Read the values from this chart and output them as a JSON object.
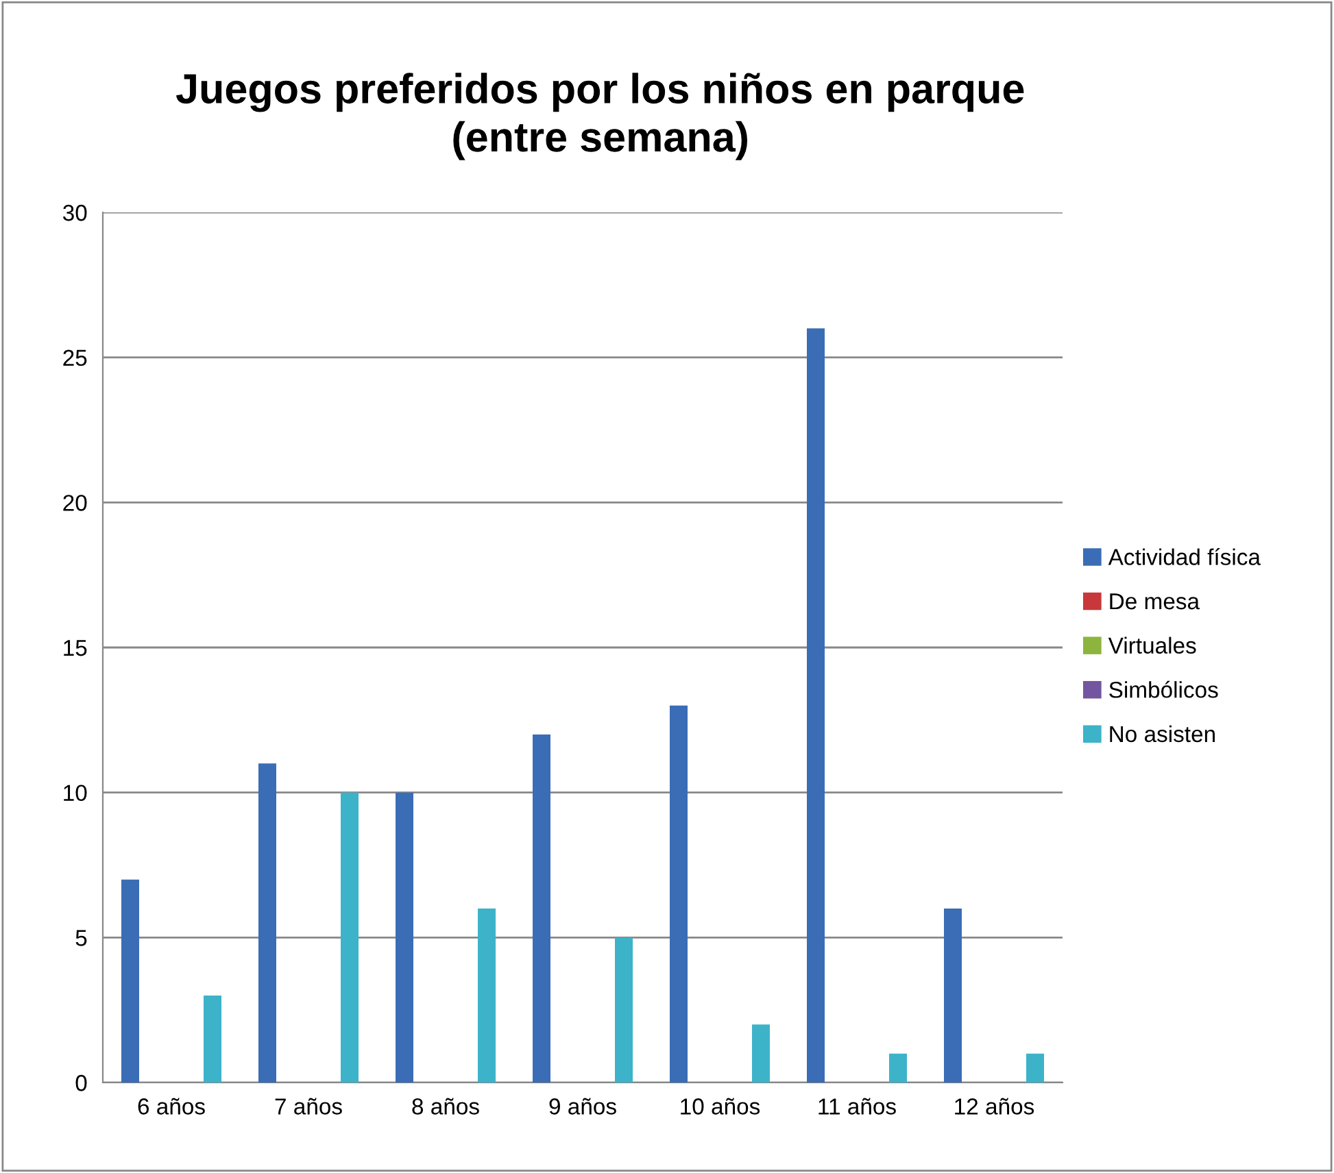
{
  "chart_data": {
    "type": "bar",
    "title": "Juegos preferidos por los niños en parque\n(entre semana)",
    "categories": [
      "6 años",
      "7 años",
      "8 años",
      "9 años",
      "10 años",
      "11 años",
      "12 años"
    ],
    "series": [
      {
        "name": "Actividad física",
        "color": "#3a6db5",
        "values": [
          7,
          11,
          10,
          12,
          13,
          26,
          6
        ]
      },
      {
        "name": "De mesa",
        "color": "#c8383a",
        "values": [
          0,
          0,
          0,
          0,
          0,
          0,
          0
        ]
      },
      {
        "name": "Virtuales",
        "color": "#8db43e",
        "values": [
          0,
          0,
          0,
          0,
          0,
          0,
          0
        ]
      },
      {
        "name": "Simbólicos",
        "color": "#7356a0",
        "values": [
          0,
          0,
          0,
          0,
          0,
          0,
          0
        ]
      },
      {
        "name": "No asisten",
        "color": "#3cb3c9",
        "values": [
          3,
          10,
          6,
          5,
          2,
          1,
          1
        ]
      }
    ],
    "ylim": [
      0,
      30
    ],
    "yticks": [
      0,
      5,
      10,
      15,
      20,
      25,
      30
    ],
    "grid": "y",
    "legend": "right"
  }
}
